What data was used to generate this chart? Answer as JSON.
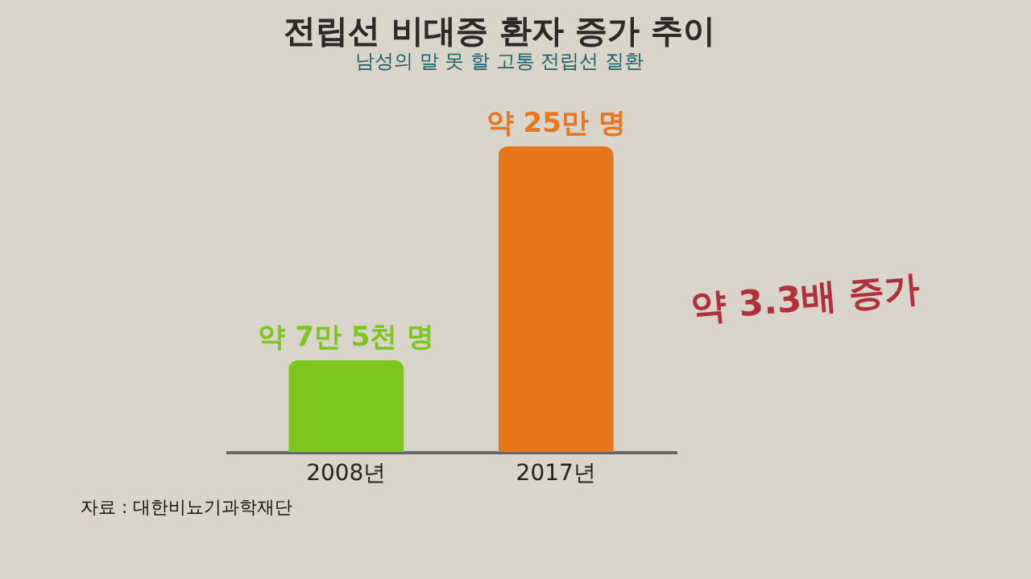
{
  "chart_data": {
    "type": "bar",
    "title": "전립선 비대증 환자 증가 추이",
    "subtitle": "남성의 말 못 할 고통 전립선 질환",
    "categories": [
      "2008년",
      "2017년"
    ],
    "values": [
      7.5,
      25
    ],
    "colors": [
      "#7cc61e",
      "#e8761c"
    ],
    "value_labels": [
      "약 7만 5천 명",
      "약 25만 명"
    ],
    "annotations": [
      "약 3.3배 증가",
      "자료 : 대한비뇨기과학재단"
    ]
  }
}
